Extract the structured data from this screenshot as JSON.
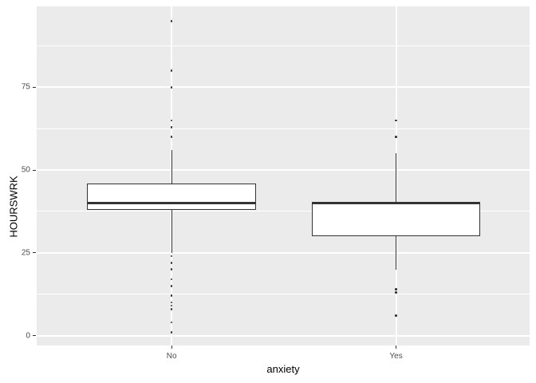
{
  "chart_data": {
    "type": "boxplot",
    "xlabel": "anxiety",
    "ylabel": "HOURSWRK",
    "categories": [
      "No",
      "Yes"
    ],
    "y_tick_labels": [
      "0",
      "25",
      "50",
      "75"
    ],
    "y_tick_values": [
      0,
      25,
      50,
      75
    ],
    "y_minor_values": [
      12.5,
      37.5,
      62.5,
      87.5
    ],
    "ylim": [
      -3.7,
      99.7
    ],
    "grid": "white major+minor horizontal lines and major vertical lines on grey panel, legend none",
    "series": [
      {
        "category": "No",
        "whisker_low": 25,
        "q1": 38,
        "median": 40,
        "q3": 46,
        "whisker_high": 56,
        "outliers_high": [
          95,
          80,
          75,
          65,
          63,
          60
        ],
        "outliers_low": [
          24,
          22,
          20,
          17,
          15,
          12,
          10,
          9,
          8,
          4,
          1
        ]
      },
      {
        "category": "Yes",
        "whisker_low": 20,
        "q1": 30,
        "median": 40,
        "q3": 40,
        "whisker_high": 55,
        "outliers_high": [
          65,
          60
        ],
        "outliers_low": [
          14,
          13,
          6
        ]
      }
    ]
  },
  "colors": {
    "page_bg": "#FFFFFF",
    "panel_bg": "#EBEBEB",
    "grid": "#FFFFFF",
    "line": "#333333",
    "point": "#333333",
    "tick_mark": "#333333",
    "tick_text": "#4D4D4D",
    "title_text": "#000000"
  }
}
